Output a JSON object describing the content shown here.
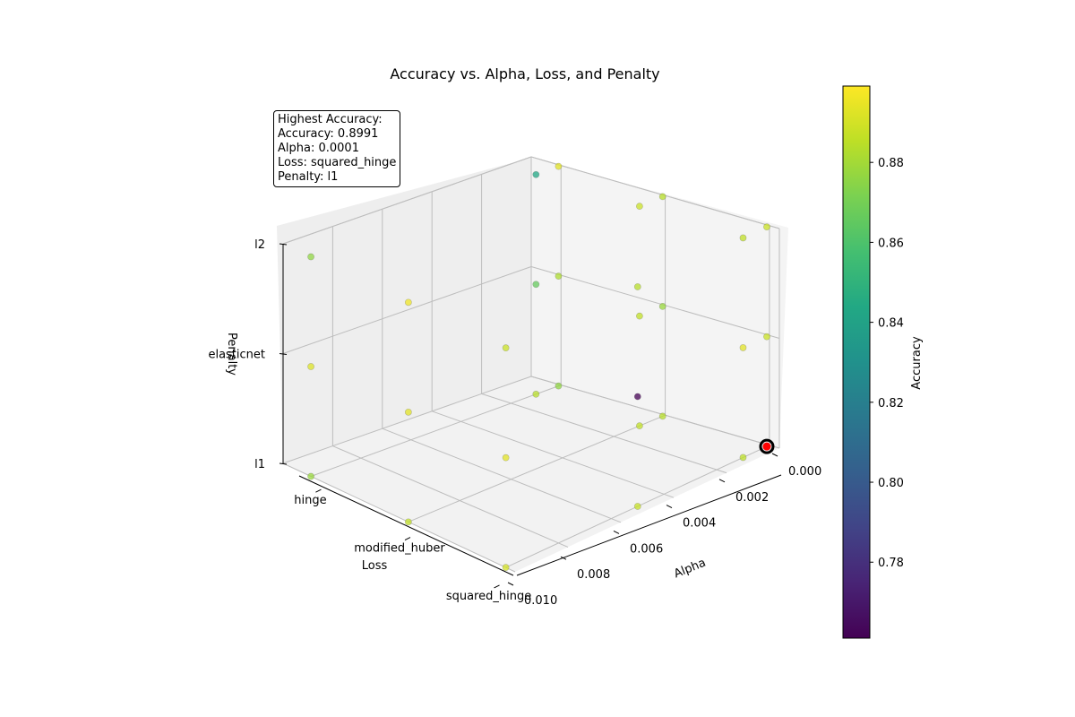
{
  "chart_data": {
    "type": "scatter",
    "title": "Accuracy vs. Alpha, Loss, and Penalty",
    "xlabel": "Alpha",
    "ylabel": "Loss",
    "zlabel": "Penalty",
    "x_ticks": [
      "0.000",
      "0.002",
      "0.004",
      "0.006",
      "0.008",
      "0.010"
    ],
    "y_categories": [
      "hinge",
      "modified_huber",
      "squared_hinge"
    ],
    "z_categories": [
      "l1",
      "elasticnet",
      "l2"
    ],
    "xlim": [
      0,
      0.01
    ],
    "colorbar": {
      "label": "Accuracy",
      "colormap": "viridis",
      "range": [
        0.761,
        0.8991
      ],
      "ticks": [
        "0.78",
        "0.80",
        "0.82",
        "0.84",
        "0.86",
        "0.88"
      ]
    },
    "points": [
      {
        "alpha": 0.0001,
        "loss": "hinge",
        "penalty": "l1",
        "accuracy": 0.876
      },
      {
        "alpha": 0.0001,
        "loss": "hinge",
        "penalty": "elasticnet",
        "accuracy": 0.882
      },
      {
        "alpha": 0.0001,
        "loss": "hinge",
        "penalty": "l2",
        "accuracy": 0.893
      },
      {
        "alpha": 0.0001,
        "loss": "modified_huber",
        "penalty": "l1",
        "accuracy": 0.884
      },
      {
        "alpha": 0.0001,
        "loss": "modified_huber",
        "penalty": "elasticnet",
        "accuracy": 0.878
      },
      {
        "alpha": 0.0001,
        "loss": "modified_huber",
        "penalty": "l2",
        "accuracy": 0.884
      },
      {
        "alpha": 0.0001,
        "loss": "squared_hinge",
        "penalty": "l1",
        "accuracy": 0.8991
      },
      {
        "alpha": 0.0001,
        "loss": "squared_hinge",
        "penalty": "elasticnet",
        "accuracy": 0.888
      },
      {
        "alpha": 0.0001,
        "loss": "squared_hinge",
        "penalty": "l2",
        "accuracy": 0.888
      },
      {
        "alpha": 0.001,
        "loss": "hinge",
        "penalty": "l1",
        "accuracy": 0.884
      },
      {
        "alpha": 0.001,
        "loss": "hinge",
        "penalty": "elasticnet",
        "accuracy": 0.866
      },
      {
        "alpha": 0.001,
        "loss": "hinge",
        "penalty": "l2",
        "accuracy": 0.843
      },
      {
        "alpha": 0.001,
        "loss": "modified_huber",
        "penalty": "l1",
        "accuracy": 0.886
      },
      {
        "alpha": 0.001,
        "loss": "modified_huber",
        "penalty": "elasticnet",
        "accuracy": 0.886
      },
      {
        "alpha": 0.001,
        "loss": "modified_huber",
        "penalty": "l2",
        "accuracy": 0.888
      },
      {
        "alpha": 0.001,
        "loss": "squared_hinge",
        "penalty": "l1",
        "accuracy": 0.885
      },
      {
        "alpha": 0.001,
        "loss": "squared_hinge",
        "penalty": "elasticnet",
        "accuracy": 0.893
      },
      {
        "alpha": 0.001,
        "loss": "squared_hinge",
        "penalty": "l2",
        "accuracy": 0.886
      },
      {
        "alpha": 0.01,
        "loss": "hinge",
        "penalty": "l1",
        "accuracy": 0.878
      },
      {
        "alpha": 0.01,
        "loss": "hinge",
        "penalty": "elasticnet",
        "accuracy": 0.892
      },
      {
        "alpha": 0.01,
        "loss": "hinge",
        "penalty": "l2",
        "accuracy": 0.876
      },
      {
        "alpha": 0.01,
        "loss": "modified_huber",
        "penalty": "l1",
        "accuracy": 0.886
      },
      {
        "alpha": 0.01,
        "loss": "modified_huber",
        "penalty": "elasticnet",
        "accuracy": 0.893
      },
      {
        "alpha": 0.01,
        "loss": "modified_huber",
        "penalty": "l2",
        "accuracy": 0.896
      },
      {
        "alpha": 0.01,
        "loss": "squared_hinge",
        "penalty": "l1",
        "accuracy": 0.89
      },
      {
        "alpha": 0.01,
        "loss": "squared_hinge",
        "penalty": "elasticnet",
        "accuracy": 0.893
      },
      {
        "alpha": 0.01,
        "loss": "squared_hinge",
        "penalty": "l2",
        "accuracy": 0.888
      },
      {
        "alpha": 0.005,
        "loss": "squared_hinge",
        "penalty": "elasticnet",
        "accuracy": 0.761
      },
      {
        "alpha": 0.005,
        "loss": "squared_hinge",
        "penalty": "l2",
        "accuracy": 0.884
      },
      {
        "alpha": 0.005,
        "loss": "squared_hinge",
        "penalty": "l1",
        "accuracy": 0.887
      }
    ],
    "highlight": {
      "alpha": 0.0001,
      "loss": "squared_hinge",
      "penalty": "l1",
      "accuracy": 0.8991,
      "color": "#ff0000"
    },
    "annotation_lines": [
      "Highest Accuracy:",
      "Accuracy: 0.8991",
      "Alpha: 0.0001",
      "Loss: squared_hinge",
      "Penalty: l1"
    ]
  }
}
